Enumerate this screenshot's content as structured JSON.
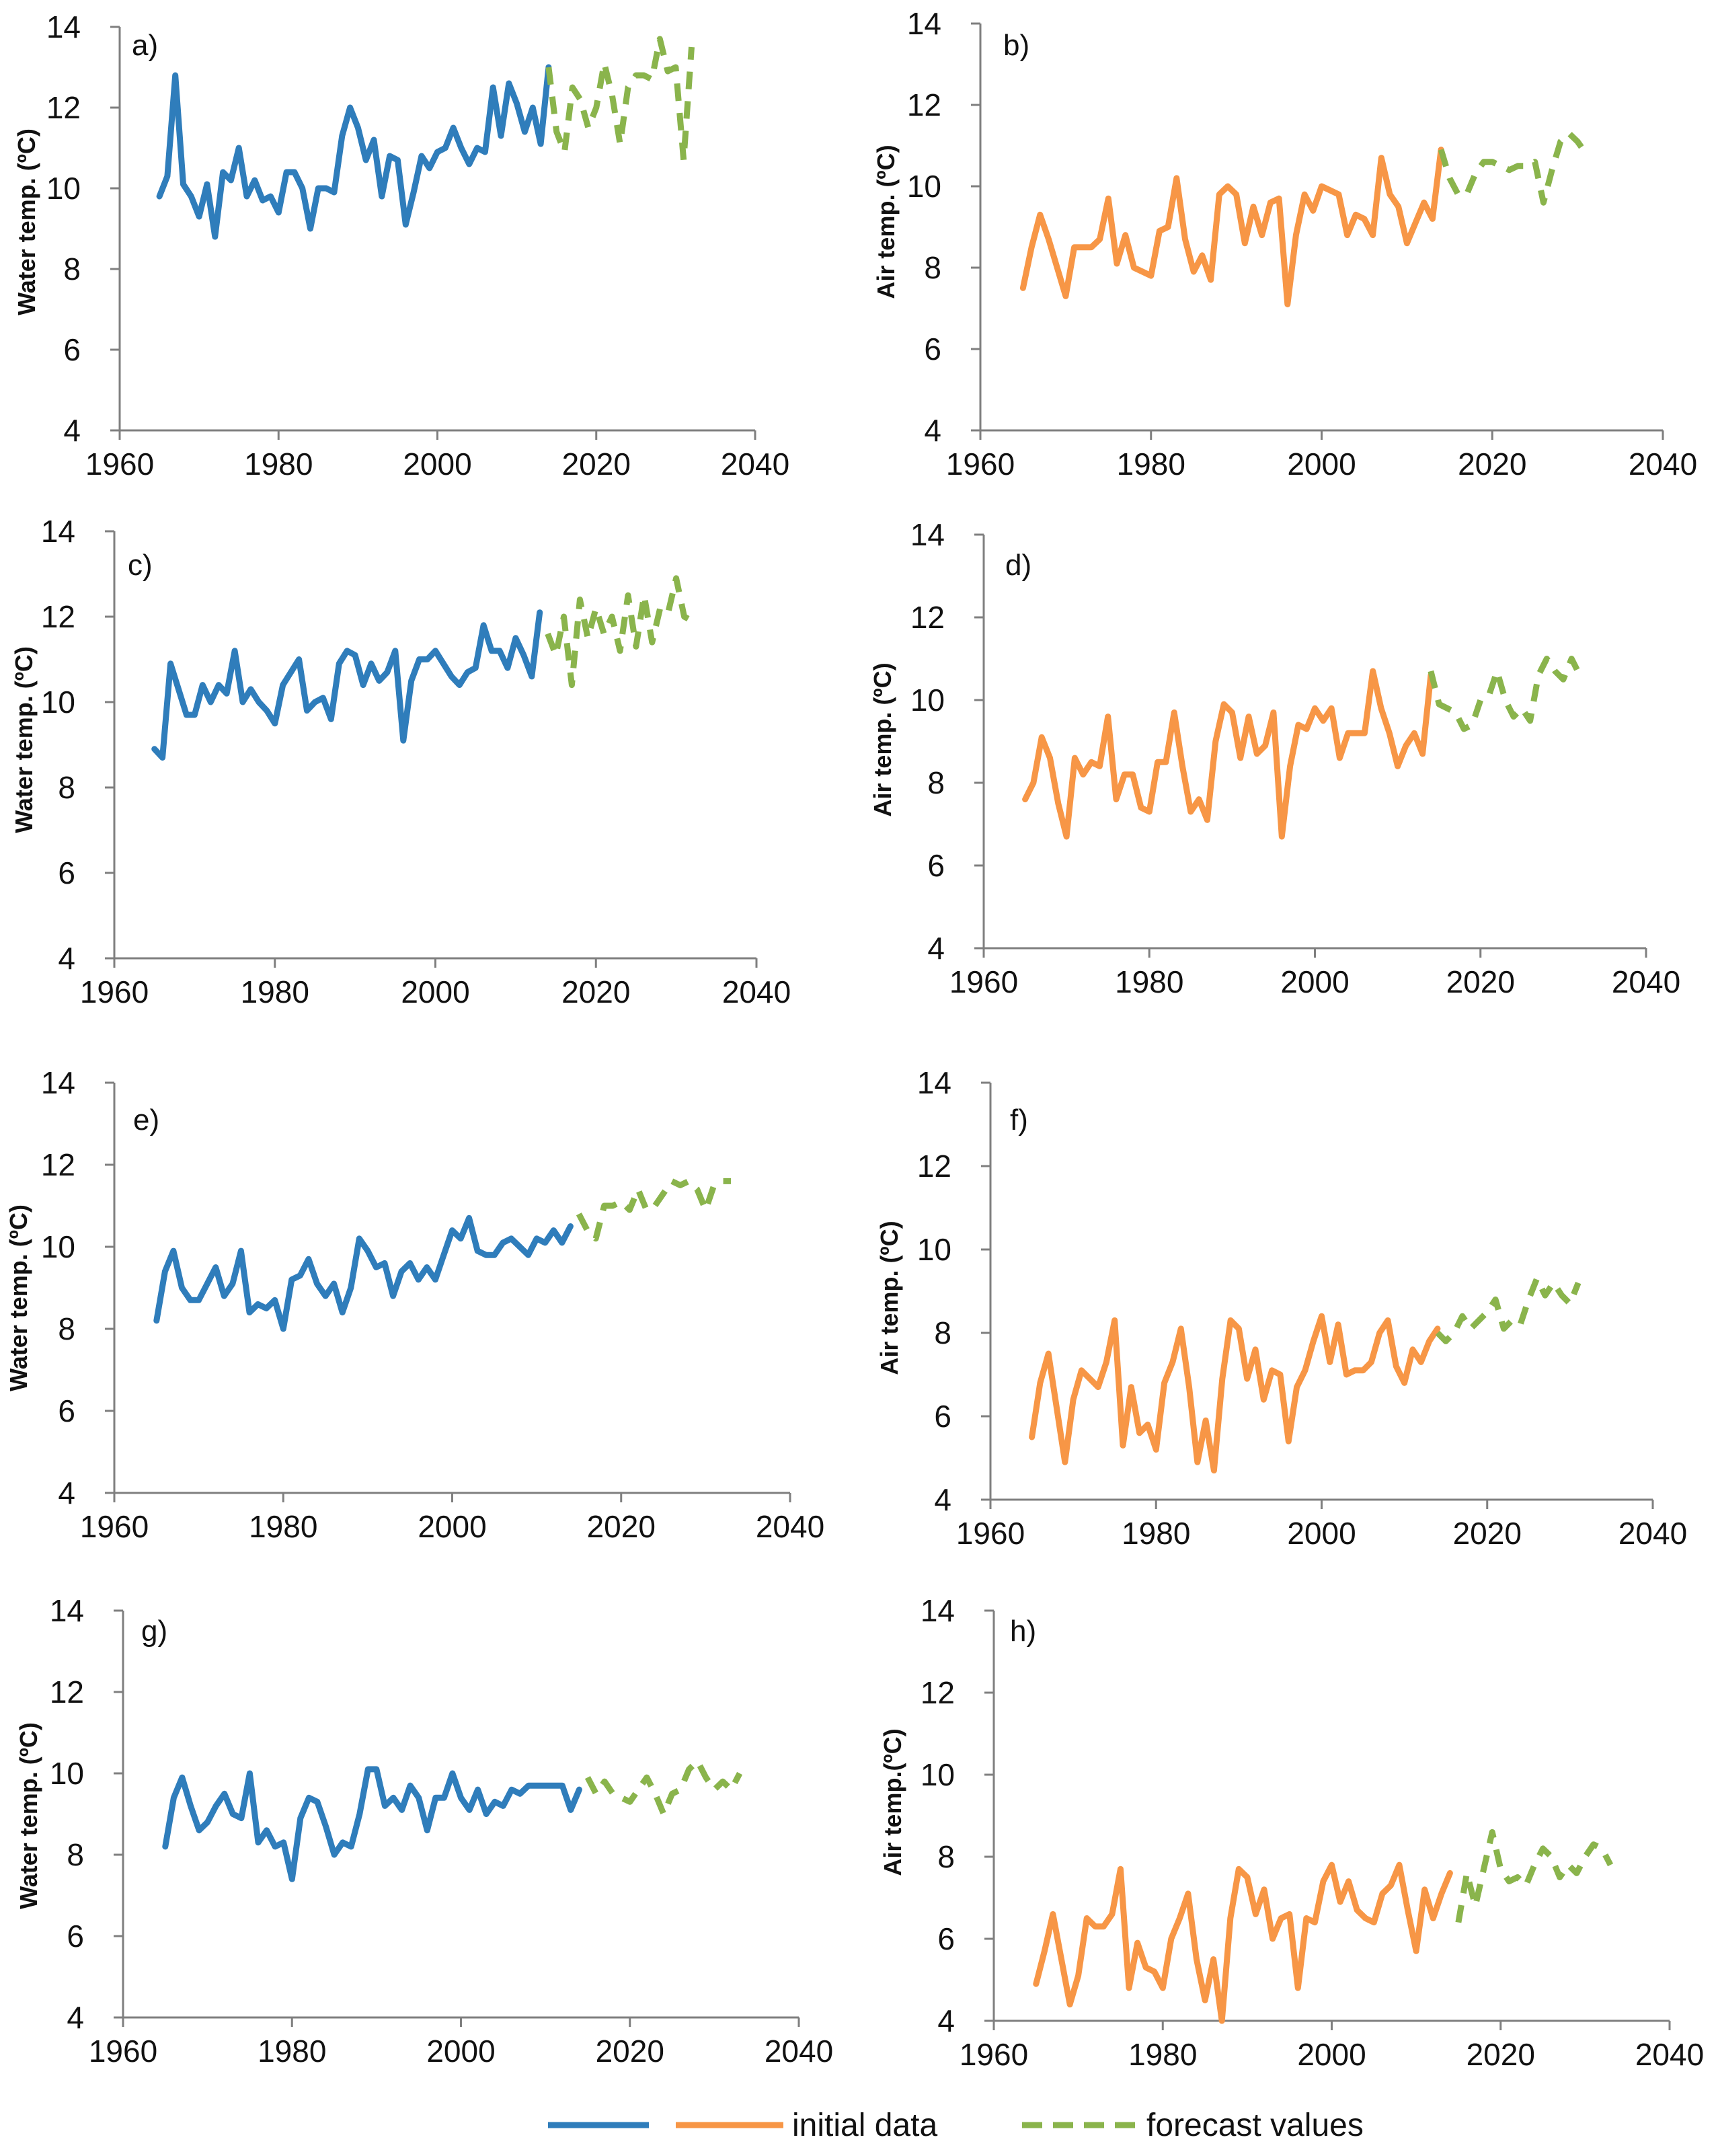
{
  "legend": {
    "initial_label": "initial data",
    "forecast_label": "forecast values",
    "colors": {
      "water": "#2f7dbb",
      "air": "#f79646",
      "forecast": "#8ab44c"
    }
  },
  "chart_data": [
    {
      "id": "a",
      "type": "line",
      "title": "a)",
      "ylabel": "Water  temp. (ºC)",
      "xlim": [
        1960,
        2040
      ],
      "ylim": [
        4,
        14
      ],
      "xticks": [
        "1960",
        "1980",
        "2000",
        "2020",
        "2040"
      ],
      "yticks": [
        "4",
        "6",
        "8",
        "10",
        "12",
        "14"
      ],
      "series": [
        {
          "name": "initial data",
          "kind": "water",
          "x_start": 1965,
          "values": [
            9.8,
            10.3,
            12.8,
            10.1,
            9.8,
            9.3,
            10.1,
            8.8,
            10.4,
            10.2,
            11.0,
            9.8,
            10.2,
            9.7,
            9.8,
            9.4,
            10.4,
            10.4,
            10.0,
            9.0,
            10.0,
            10.0,
            9.9,
            11.3,
            12.0,
            11.5,
            10.7,
            11.2,
            9.8,
            10.8,
            10.7,
            9.1,
            9.9,
            10.8,
            10.5,
            10.9,
            11.0,
            11.5,
            11.0,
            10.6,
            11.0,
            10.9,
            12.5,
            11.3,
            12.6,
            12.1,
            11.4,
            12.0,
            11.1,
            13.0
          ]
        },
        {
          "name": "forecast values",
          "kind": "forecast",
          "x_start": 2014,
          "values": [
            13.0,
            11.4,
            10.9,
            12.5,
            12.2,
            11.5,
            12.0,
            13.1,
            12.3,
            11.1,
            12.5,
            12.8,
            12.8,
            12.7,
            13.7,
            12.9,
            13.0,
            10.7,
            13.5
          ]
        }
      ]
    },
    {
      "id": "b",
      "type": "line",
      "title": "b)",
      "ylabel": "Air  temp. (ºC)",
      "xlim": [
        1960,
        2040
      ],
      "ylim": [
        4,
        14
      ],
      "xticks": [
        "1960",
        "1980",
        "2000",
        "2020",
        "2040"
      ],
      "yticks": [
        "4",
        "6",
        "8",
        "10",
        "12",
        "14"
      ],
      "series": [
        {
          "name": "initial data",
          "kind": "air",
          "x_start": 1965,
          "values": [
            7.5,
            8.5,
            9.3,
            8.7,
            8.0,
            7.3,
            8.5,
            8.5,
            8.5,
            8.7,
            9.7,
            8.1,
            8.8,
            8.0,
            7.9,
            7.8,
            8.9,
            9.0,
            10.2,
            8.7,
            7.9,
            8.3,
            7.7,
            9.8,
            10.0,
            9.8,
            8.6,
            9.5,
            8.8,
            9.6,
            9.7,
            7.1,
            8.8,
            9.8,
            9.4,
            10.0,
            9.9,
            9.8,
            8.8,
            9.3,
            9.2,
            8.8,
            10.7,
            9.8,
            9.5,
            8.6,
            9.1,
            9.6,
            9.2,
            10.9
          ]
        },
        {
          "name": "forecast values",
          "kind": "forecast",
          "x_start": 2014,
          "values": [
            10.9,
            10.2,
            9.8,
            9.8,
            10.3,
            10.6,
            10.6,
            10.5,
            10.4,
            10.5,
            10.5,
            10.6,
            9.6,
            10.4,
            11.1,
            11.3,
            11.1,
            10.8
          ]
        }
      ]
    },
    {
      "id": "c",
      "type": "line",
      "title": "c)",
      "ylabel": "Water  temp. (ºC)",
      "xlim": [
        1960,
        2040
      ],
      "ylim": [
        4,
        14
      ],
      "xticks": [
        "1960",
        "1980",
        "2000",
        "2020",
        "2040"
      ],
      "yticks": [
        "4",
        "6",
        "8",
        "10",
        "12",
        "14"
      ],
      "series": [
        {
          "name": "initial data",
          "kind": "water",
          "x_start": 1965,
          "values": [
            8.9,
            8.7,
            10.9,
            10.3,
            9.7,
            9.7,
            10.4,
            10.0,
            10.4,
            10.2,
            11.2,
            10.0,
            10.3,
            10.0,
            9.8,
            9.5,
            10.4,
            10.7,
            11.0,
            9.8,
            10.0,
            10.1,
            9.6,
            10.9,
            11.2,
            11.1,
            10.4,
            10.9,
            10.5,
            10.7,
            11.2,
            9.1,
            10.5,
            11.0,
            11.0,
            11.2,
            10.9,
            10.6,
            10.4,
            10.7,
            10.8,
            11.8,
            11.2,
            11.2,
            10.8,
            11.5,
            11.1,
            10.6,
            12.1
          ]
        },
        {
          "name": "forecast values",
          "kind": "forecast",
          "x_start": 2014,
          "values": [
            11.6,
            11.1,
            12.0,
            10.4,
            12.4,
            11.5,
            12.2,
            11.6,
            12.0,
            11.2,
            12.5,
            11.3,
            12.5,
            11.4,
            12.2,
            12.1,
            12.9,
            12.0,
            11.9
          ]
        }
      ]
    },
    {
      "id": "d",
      "type": "line",
      "title": "d)",
      "ylabel": "Air  temp. (ºC)",
      "xlim": [
        1960,
        2040
      ],
      "ylim": [
        4,
        14
      ],
      "xticks": [
        "1960",
        "1980",
        "2000",
        "2020",
        "2040"
      ],
      "yticks": [
        "4",
        "6",
        "8",
        "10",
        "12",
        "14"
      ],
      "series": [
        {
          "name": "initial data",
          "kind": "air",
          "x_start": 1965,
          "values": [
            7.6,
            8.0,
            9.1,
            8.6,
            7.5,
            6.7,
            8.6,
            8.2,
            8.5,
            8.4,
            9.6,
            7.6,
            8.2,
            8.2,
            7.4,
            7.3,
            8.5,
            8.5,
            9.7,
            8.4,
            7.3,
            7.6,
            7.1,
            9.0,
            9.9,
            9.7,
            8.6,
            9.6,
            8.7,
            8.9,
            9.7,
            6.7,
            8.4,
            9.4,
            9.3,
            9.8,
            9.5,
            9.8,
            8.6,
            9.2,
            9.2,
            9.2,
            10.7,
            9.8,
            9.2,
            8.4,
            8.9,
            9.2,
            8.7,
            10.6
          ]
        },
        {
          "name": "forecast values",
          "kind": "forecast",
          "x_start": 2014,
          "values": [
            10.7,
            9.9,
            9.8,
            9.7,
            9.3,
            9.4,
            10.0,
            10.1,
            10.7,
            10.0,
            9.6,
            9.8,
            9.5,
            10.6,
            11.0,
            10.7,
            10.5,
            11.0,
            10.6
          ]
        }
      ]
    },
    {
      "id": "e",
      "type": "line",
      "title": "e)",
      "ylabel": "Water  temp. (ºC)",
      "xlim": [
        1960,
        2040
      ],
      "ylim": [
        4,
        14
      ],
      "xticks": [
        "1960",
        "1980",
        "2000",
        "2020",
        "2040"
      ],
      "yticks": [
        "4",
        "6",
        "8",
        "10",
        "12",
        "14"
      ],
      "series": [
        {
          "name": "initial data",
          "kind": "water",
          "x_start": 1965,
          "values": [
            8.2,
            9.4,
            9.9,
            9.0,
            8.7,
            8.7,
            9.1,
            9.5,
            8.8,
            9.1,
            9.9,
            8.4,
            8.6,
            8.5,
            8.7,
            8.0,
            9.2,
            9.3,
            9.7,
            9.1,
            8.8,
            9.1,
            8.4,
            9.0,
            10.2,
            9.9,
            9.5,
            9.6,
            8.8,
            9.4,
            9.6,
            9.2,
            9.5,
            9.2,
            9.8,
            10.4,
            10.2,
            10.7,
            9.9,
            9.8,
            9.8,
            10.1,
            10.2,
            10.0,
            9.8,
            10.2,
            10.1,
            10.4,
            10.1,
            10.5
          ]
        },
        {
          "name": "forecast values",
          "kind": "forecast",
          "x_start": 2015,
          "values": [
            10.8,
            10.4,
            10.2,
            11.0,
            11.0,
            11.1,
            10.9,
            11.4,
            10.9,
            11.0,
            11.3,
            11.6,
            11.5,
            11.6,
            11.4,
            10.9,
            11.5,
            11.6,
            11.6
          ]
        }
      ]
    },
    {
      "id": "f",
      "type": "line",
      "title": "f)",
      "ylabel": "Air  temp. (ºC)",
      "xlim": [
        1960,
        2040
      ],
      "ylim": [
        4,
        14
      ],
      "xticks": [
        "1960",
        "1980",
        "2000",
        "2020",
        "2040"
      ],
      "yticks": [
        "4",
        "6",
        "8",
        "10",
        "12",
        "14"
      ],
      "series": [
        {
          "name": "initial data",
          "kind": "air",
          "x_start": 1965,
          "values": [
            5.5,
            6.8,
            7.5,
            6.2,
            4.9,
            6.4,
            7.1,
            6.9,
            6.7,
            7.3,
            8.3,
            5.3,
            6.7,
            5.6,
            5.8,
            5.2,
            6.8,
            7.3,
            8.1,
            6.7,
            4.9,
            5.9,
            4.7,
            6.9,
            8.3,
            8.1,
            6.9,
            7.6,
            6.4,
            7.1,
            7.0,
            5.4,
            6.7,
            7.1,
            7.8,
            8.4,
            7.3,
            8.2,
            7.0,
            7.1,
            7.1,
            7.3,
            8.0,
            8.3,
            7.2,
            6.8,
            7.6,
            7.3,
            7.8,
            8.1
          ]
        },
        {
          "name": "forecast values",
          "kind": "forecast",
          "x_start": 2014,
          "values": [
            8.0,
            7.8,
            8.0,
            8.4,
            8.1,
            8.3,
            8.5,
            8.8,
            8.1,
            8.3,
            8.2,
            8.8,
            9.3,
            8.9,
            9.2,
            8.9,
            8.7,
            9.2
          ]
        }
      ]
    },
    {
      "id": "g",
      "type": "line",
      "title": "g)",
      "ylabel": "Water  temp. (ºC)",
      "xlim": [
        1960,
        2040
      ],
      "ylim": [
        4,
        14
      ],
      "xticks": [
        "1960",
        "1980",
        "2000",
        "2020",
        "2040"
      ],
      "yticks": [
        "4",
        "6",
        "8",
        "10",
        "12",
        "14"
      ],
      "series": [
        {
          "name": "initial data",
          "kind": "water",
          "x_start": 1965,
          "values": [
            8.2,
            9.4,
            9.9,
            9.2,
            8.6,
            8.8,
            9.2,
            9.5,
            9.0,
            8.9,
            10.0,
            8.3,
            8.6,
            8.2,
            8.3,
            7.4,
            8.9,
            9.4,
            9.3,
            8.7,
            8.0,
            8.3,
            8.2,
            9.0,
            10.1,
            10.1,
            9.2,
            9.4,
            9.1,
            9.7,
            9.4,
            8.6,
            9.4,
            9.4,
            10.0,
            9.4,
            9.1,
            9.6,
            9.0,
            9.3,
            9.2,
            9.6,
            9.5,
            9.7,
            9.7,
            9.7,
            9.7,
            9.7,
            9.1,
            9.6
          ]
        },
        {
          "name": "forecast values",
          "kind": "forecast",
          "x_start": 2015,
          "values": [
            9.9,
            9.5,
            9.8,
            9.5,
            9.4,
            9.3,
            9.6,
            9.9,
            9.5,
            9.0,
            9.5,
            9.6,
            10.1,
            10.3,
            9.9,
            9.6,
            9.8,
            9.6,
            10.0
          ]
        }
      ]
    },
    {
      "id": "h",
      "type": "line",
      "title": "h)",
      "ylabel": "Air  temp.(ºC)",
      "xlim": [
        1960,
        2040
      ],
      "ylim": [
        4,
        14
      ],
      "xticks": [
        "1960",
        "1980",
        "2000",
        "2020",
        "2040"
      ],
      "yticks": [
        "4",
        "6",
        "8",
        "10",
        "12",
        "14"
      ],
      "series": [
        {
          "name": "initial data",
          "kind": "air",
          "x_start": 1965,
          "values": [
            4.9,
            5.7,
            6.6,
            5.5,
            4.4,
            5.1,
            6.5,
            6.3,
            6.3,
            6.6,
            7.7,
            4.8,
            5.9,
            5.3,
            5.2,
            4.8,
            6.0,
            6.5,
            7.1,
            5.5,
            4.5,
            5.5,
            4.0,
            6.5,
            7.7,
            7.5,
            6.6,
            7.2,
            6.0,
            6.5,
            6.6,
            4.8,
            6.5,
            6.4,
            7.4,
            7.8,
            6.9,
            7.4,
            6.7,
            6.5,
            6.4,
            7.1,
            7.3,
            7.8,
            6.7,
            5.7,
            7.2,
            6.5,
            7.1,
            7.6
          ]
        },
        {
          "name": "forecast values",
          "kind": "forecast",
          "x_start": 2015,
          "values": [
            6.4,
            7.6,
            6.8,
            7.7,
            8.6,
            7.7,
            7.4,
            7.5,
            7.3,
            7.8,
            8.2,
            8.0,
            7.5,
            7.8,
            7.6,
            8.0,
            8.3,
            8.2,
            7.8
          ]
        }
      ]
    }
  ]
}
